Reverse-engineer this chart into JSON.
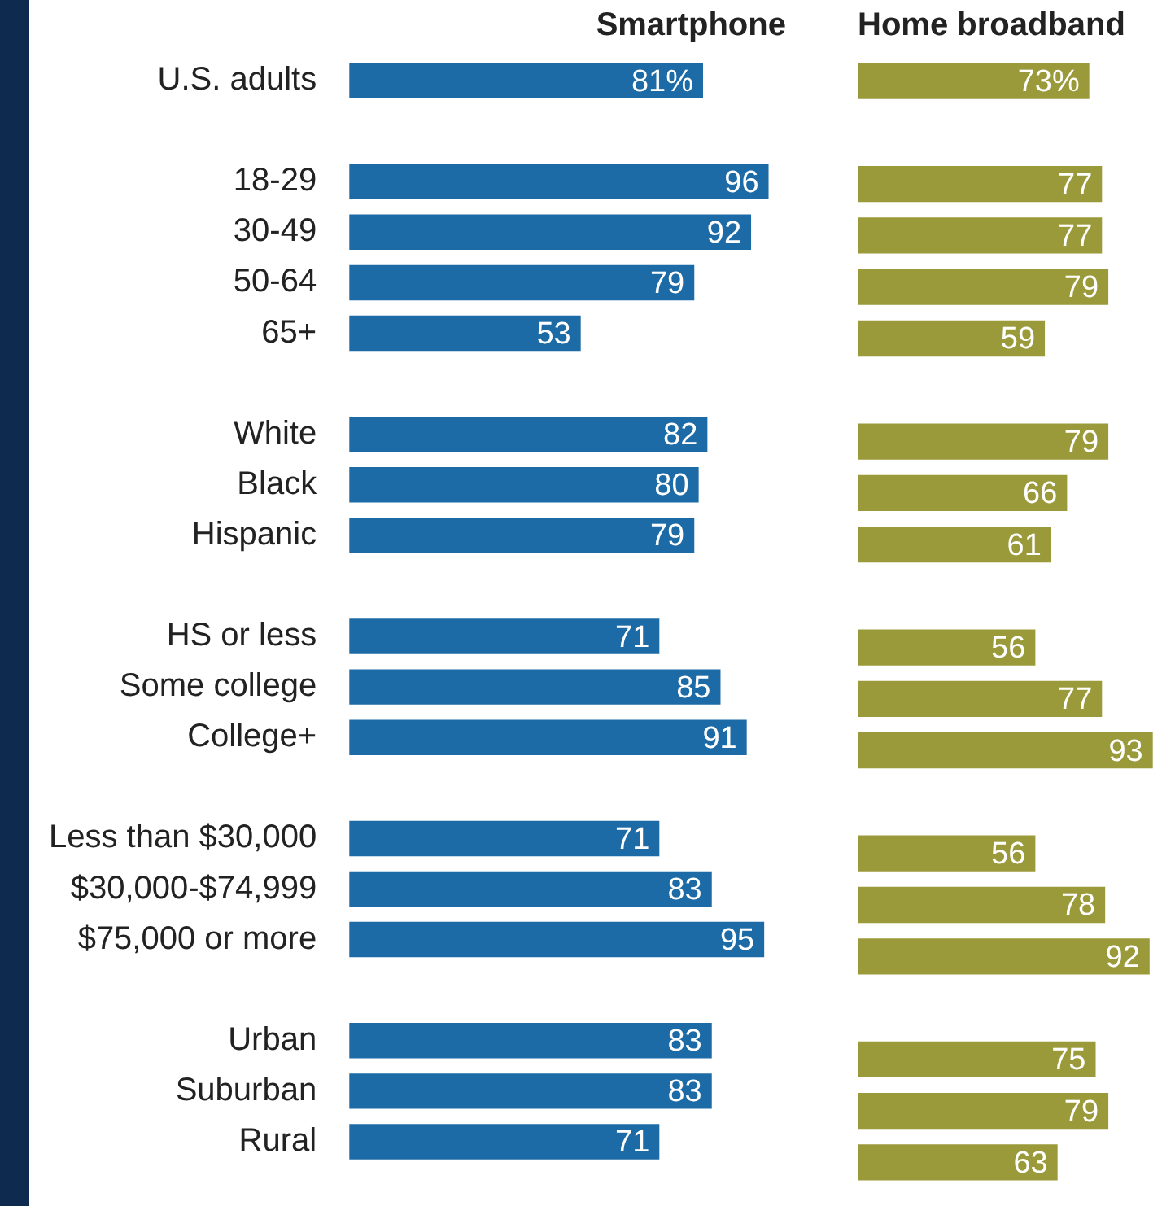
{
  "chart_data": [
    {
      "type": "bar",
      "orientation": "horizontal",
      "title": "Smartphone",
      "categories": [
        "U.S. adults",
        null,
        "18-29",
        "30-49",
        "50-64",
        "65+",
        null,
        "White",
        "Black",
        "Hispanic",
        null,
        "HS or less",
        "Some college",
        "College+",
        null,
        "Less than $30,000",
        "$30,000-$74,999",
        "$75,000 or more",
        null,
        "Urban",
        "Suburban",
        "Rural"
      ],
      "series": [
        {
          "color": "#1c6aa6",
          "values": [
            81,
            null,
            96,
            92,
            79,
            53,
            null,
            82,
            80,
            79,
            null,
            71,
            85,
            91,
            null,
            71,
            83,
            95,
            null,
            83,
            83,
            71
          ],
          "value_labels": [
            "81%",
            null,
            "96",
            "92",
            "79",
            "53",
            null,
            "82",
            "80",
            "79",
            null,
            "71",
            "85",
            "91",
            null,
            "71",
            "83",
            "95",
            null,
            "83",
            "83",
            "71"
          ]
        }
      ],
      "tick_labels": "y"
    },
    {
      "type": "bar",
      "orientation": "horizontal",
      "title": "Home broadband",
      "categories": [
        null,
        null,
        null,
        null,
        null,
        null,
        null,
        null,
        null,
        null,
        null,
        null,
        null,
        null,
        null,
        null,
        null,
        null,
        null,
        null,
        null,
        null
      ],
      "series": [
        {
          "color": "#9b9a3b",
          "values": [
            73,
            null,
            77,
            77,
            79,
            59,
            null,
            79,
            66,
            61,
            null,
            56,
            77,
            93,
            null,
            56,
            78,
            92,
            null,
            75,
            79,
            63
          ],
          "value_labels": [
            "73%",
            null,
            "77",
            "77",
            "79",
            "59",
            null,
            "79",
            "66",
            "61",
            null,
            "56",
            "77",
            "93",
            null,
            "56",
            "78",
            "92",
            null,
            "75",
            "79",
            "63"
          ]
        }
      ],
      "tick_labels": false
    }
  ]
}
